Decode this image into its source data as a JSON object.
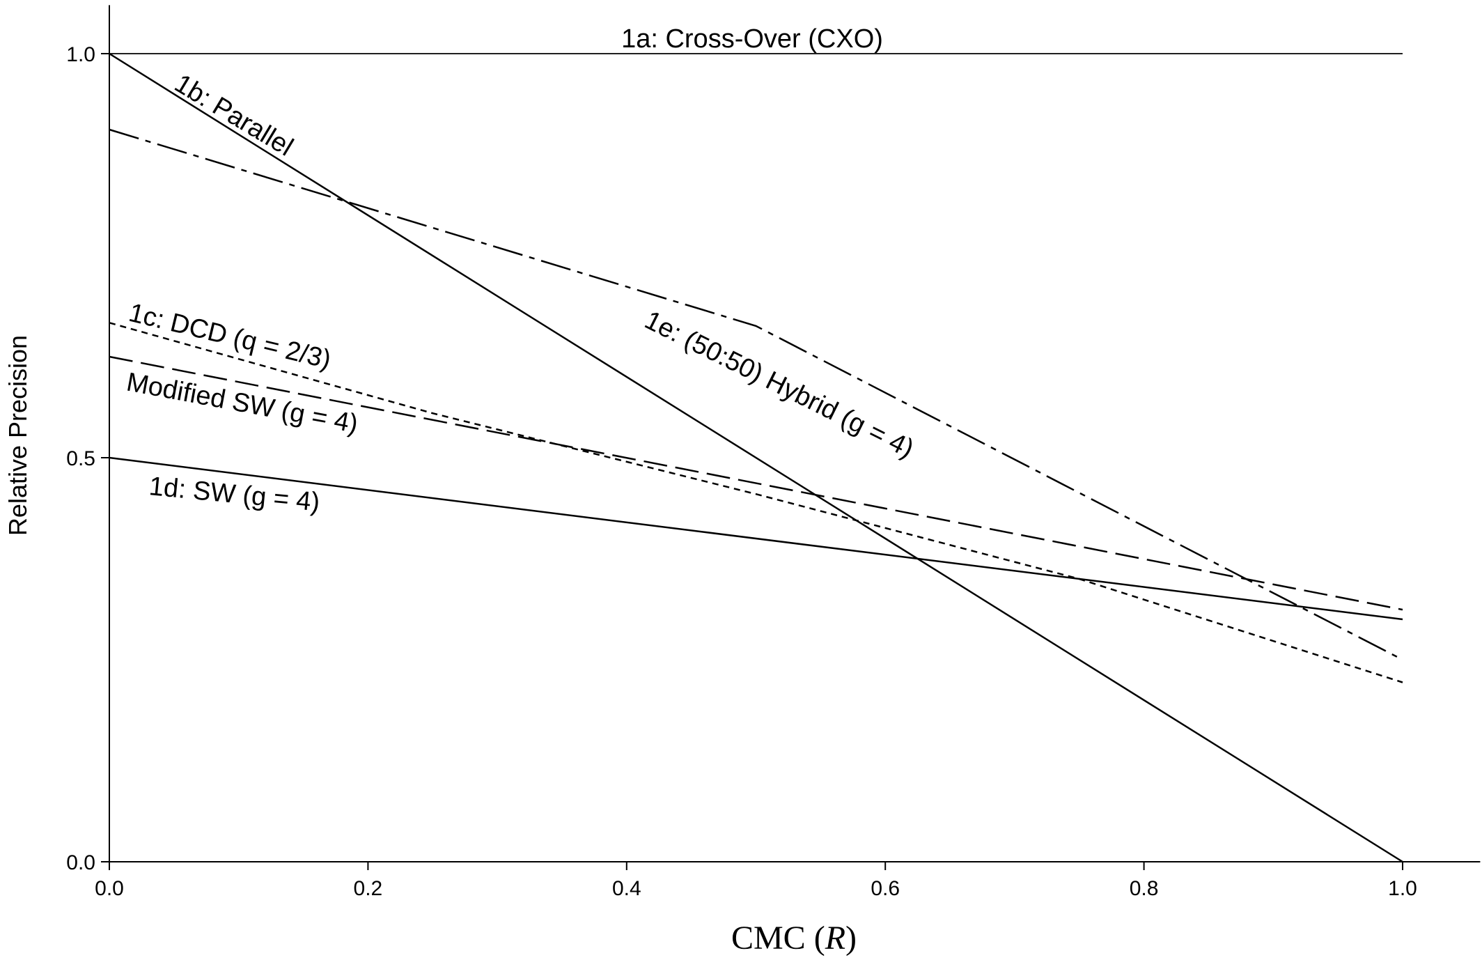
{
  "chart_data": {
    "type": "line",
    "xlabel": "CMC (",
    "xlabel_var": "R",
    "xlabel_end": ")",
    "ylabel": "Relative Precision",
    "xlim": [
      0.0,
      1.06
    ],
    "ylim": [
      0.0,
      1.06
    ],
    "x_ticks": [
      0.0,
      0.2,
      0.4,
      0.6,
      0.8,
      1.0
    ],
    "x_tick_labels": [
      "0.0",
      "0.2",
      "0.4",
      "0.6",
      "0.8",
      "1.0"
    ],
    "y_ticks": [
      0.0,
      0.5,
      1.0
    ],
    "y_tick_labels": [
      "0.0",
      "0.5",
      "1.0"
    ],
    "grid": false,
    "legend": "none",
    "series": [
      {
        "name": "1a: Cross-Over (CXO)",
        "style": "solid",
        "x": [
          0.0,
          1.0
        ],
        "y": [
          1.0,
          1.0
        ]
      },
      {
        "name": "1b: Parallel",
        "style": "solid",
        "x": [
          0.0,
          1.0
        ],
        "y": [
          1.0,
          0.0
        ]
      },
      {
        "name": "1c: DCD (q = 2/3)",
        "style": "dotted",
        "x": [
          0.0,
          0.25,
          0.5,
          0.75,
          1.0
        ],
        "y": [
          0.667,
          0.555,
          0.455,
          0.35,
          0.222
        ]
      },
      {
        "name": "Modified SW (g = 4)",
        "style": "dashed",
        "x": [
          0.0,
          1.0
        ],
        "y": [
          0.625,
          0.312
        ]
      },
      {
        "name": "1d: SW (g = 4)",
        "style": "solid",
        "x": [
          0.0,
          1.0
        ],
        "y": [
          0.5,
          0.3
        ]
      },
      {
        "name": "1e: (50:50) Hybrid (g = 4)",
        "style": "dashdot",
        "x": [
          0.0,
          0.5,
          1.0
        ],
        "y": [
          0.906,
          0.663,
          0.25
        ]
      }
    ],
    "annotations": [
      {
        "text": "1a: Cross-Over (CXO)",
        "series": 0
      },
      {
        "text": "1b: Parallel",
        "series": 1
      },
      {
        "text": "1c: DCD (q = 2/3)",
        "series": 2
      },
      {
        "text": "Modified SW (g = 4)",
        "series": 3
      },
      {
        "text": "1d: SW (g = 4)",
        "series": 4
      },
      {
        "text": "1e: (50:50) Hybrid (g = 4)",
        "series": 5
      }
    ],
    "line_color": "#000000"
  }
}
